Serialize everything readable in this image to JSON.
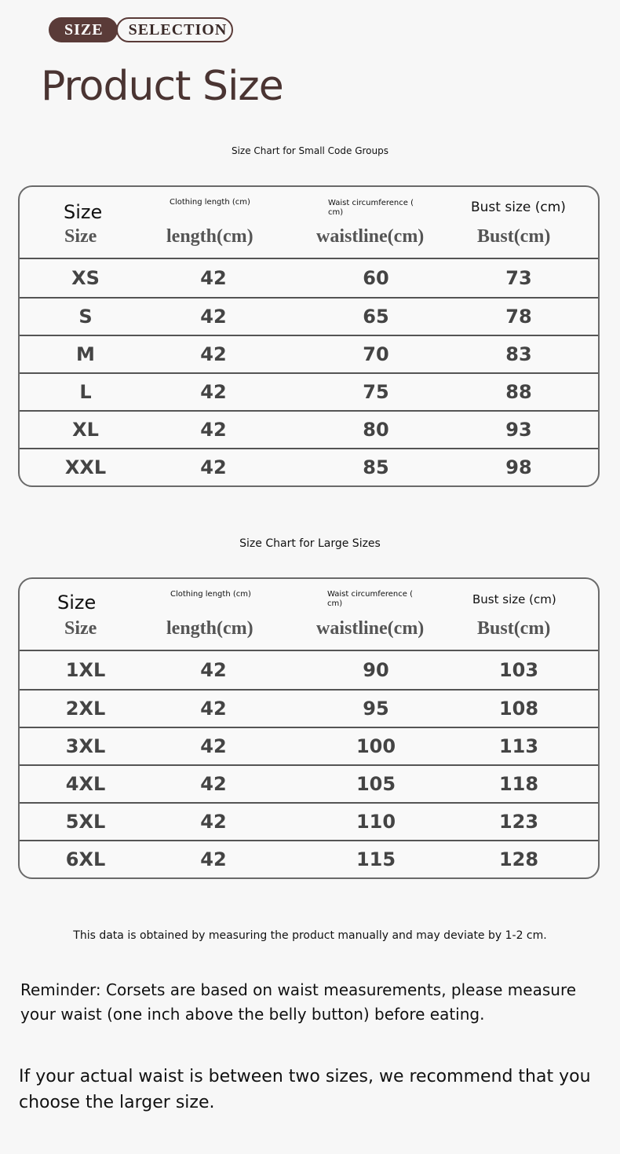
{
  "badge": {
    "left": "SIZE",
    "right": "SELECTION"
  },
  "title": "Product Size",
  "headers": {
    "size_en": "Size",
    "size_se": "Size",
    "length_en": "Clothing length (cm)",
    "length_se": "length(cm)",
    "waist_en": "Waist circumference ( cm)",
    "waist_se": "waistline(cm)",
    "bust_en": "Bust size (cm)",
    "bust_se": "Bust(cm)"
  },
  "tables": [
    {
      "caption": "Size Chart for Small Code Groups",
      "rows": [
        [
          "XS",
          "42",
          "60",
          "73"
        ],
        [
          "S",
          "42",
          "65",
          "78"
        ],
        [
          "M",
          "42",
          "70",
          "83"
        ],
        [
          "L",
          "42",
          "75",
          "88"
        ],
        [
          "XL",
          "42",
          "80",
          "93"
        ],
        [
          "XXL",
          "42",
          "85",
          "98"
        ]
      ]
    },
    {
      "caption": "Size Chart for Large Sizes",
      "rows": [
        [
          "1XL",
          "42",
          "90",
          "103"
        ],
        [
          "2XL",
          "42",
          "95",
          "108"
        ],
        [
          "3XL",
          "42",
          "100",
          "113"
        ],
        [
          "4XL",
          "42",
          "105",
          "118"
        ],
        [
          "5XL",
          "42",
          "110",
          "123"
        ],
        [
          "6XL",
          "42",
          "115",
          "128"
        ]
      ]
    }
  ],
  "note": "This data is obtained by measuring the product manually and may deviate by 1-2 cm.",
  "reminder": "Reminder: Corsets are based on waist measurements, please measure your waist (one inch above the belly button) before eating.",
  "advice": "If your actual waist is between two sizes, we recommend that you choose the larger size."
}
